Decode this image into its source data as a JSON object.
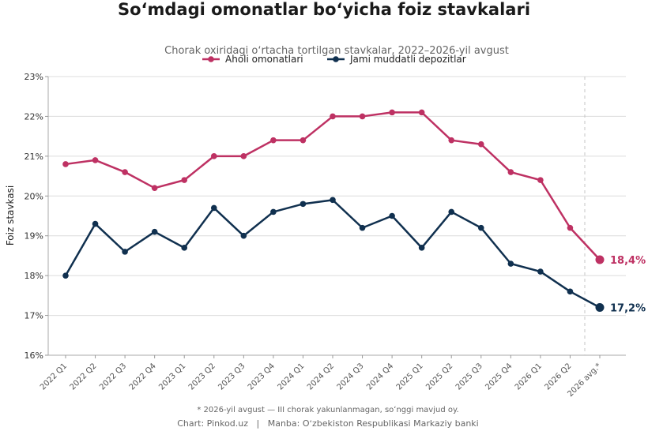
{
  "chart_data": {
    "type": "line",
    "title": "Soʻmdagi omonatlar boʻyicha foiz stavkalari",
    "subtitle": "Chorak oxiridagi oʻrtacha tortilgan stavkalar, 2022–2026-yil avgust",
    "xlabel": "",
    "ylabel": "Foiz stavkasi",
    "ylim": [
      16,
      23
    ],
    "y_ticks": [
      "16%",
      "17%",
      "18%",
      "19%",
      "20%",
      "21%",
      "22%",
      "23%"
    ],
    "categories": [
      "2022 Q1",
      "2022 Q2",
      "2022 Q3",
      "2022 Q4",
      "2023 Q1",
      "2023 Q2",
      "2023 Q3",
      "2023 Q4",
      "2024 Q1",
      "2024 Q2",
      "2024 Q3",
      "2024 Q4",
      "2025 Q1",
      "2025 Q2",
      "2025 Q3",
      "2025 Q4",
      "2026 Q1",
      "2026 Q2",
      "2026 avg.*"
    ],
    "series": [
      {
        "name": "Aholi omonatlari",
        "color": "#be3163",
        "end_label": "18,4%",
        "values": [
          20.8,
          20.9,
          20.6,
          20.2,
          20.4,
          21.0,
          21.0,
          21.4,
          21.4,
          22.0,
          22.0,
          22.1,
          22.1,
          21.4,
          21.3,
          20.6,
          20.4,
          19.2,
          18.4
        ]
      },
      {
        "name": "Jami muddatli depozitlar",
        "color": "#10304f",
        "end_label": "17,2%",
        "values": [
          18.0,
          19.3,
          18.6,
          19.1,
          18.7,
          19.7,
          19.0,
          19.6,
          19.8,
          19.9,
          19.2,
          19.5,
          18.7,
          19.6,
          19.2,
          18.3,
          18.1,
          17.6,
          17.2
        ]
      }
    ],
    "grid": "horizontal",
    "legend": "top-center",
    "footnote": "* 2026-yil avgust — III chorak yakunlanmagan, soʻnggi mavjud oy.",
    "source": "Chart: Pinkod.uz   |   Manba: Oʻzbekiston Respublikasi Markaziy banki"
  }
}
